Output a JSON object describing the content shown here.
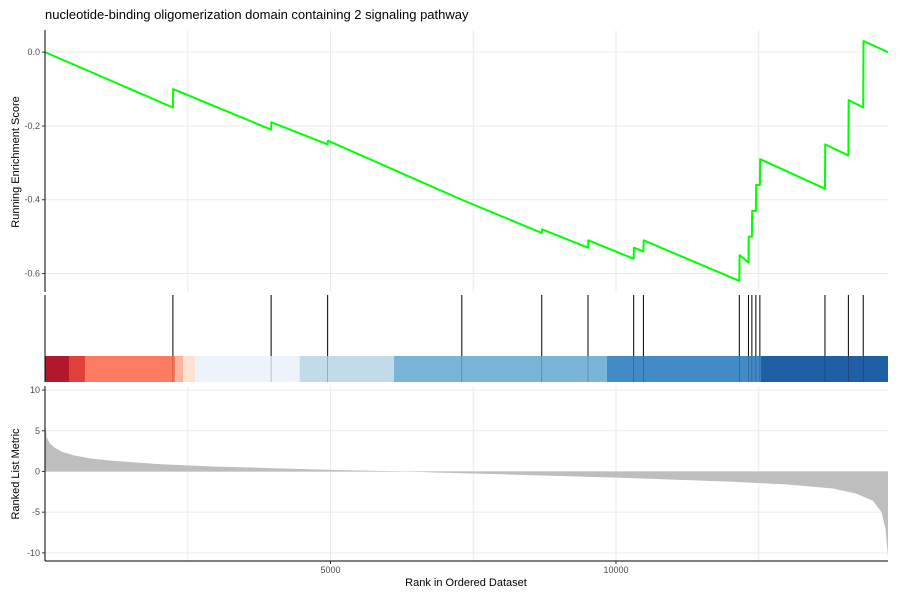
{
  "chart_data": {
    "type": "line",
    "title": "nucleotide-binding oligomerization domain containing 2 signaling pathway",
    "xlabel": "Rank in Ordered Dataset",
    "n_ranks": 14764,
    "xlim": [
      0,
      14764
    ],
    "x_ticks": [
      5000,
      10000
    ],
    "grid_x": [
      2500,
      5000,
      7500,
      10000,
      12500
    ],
    "colors": {
      "enrichment_line": "#00ff00",
      "hit_line": "#000000",
      "ranked_metric_fill": "#bebebe",
      "axis": "#000000",
      "grid": "#ebebeb"
    },
    "enrichment_panel": {
      "ylabel": "Running Enrichment Score",
      "ylim": [
        -0.65,
        0.06
      ],
      "y_ticks": [
        0.0,
        -0.2,
        -0.4,
        -0.6
      ],
      "y_tick_labels": [
        "0.0",
        "-0.2",
        "-0.4",
        "-0.6"
      ],
      "points": [
        [
          0,
          0.0
        ],
        [
          2240,
          -0.15
        ],
        [
          2245,
          -0.1
        ],
        [
          3960,
          -0.21
        ],
        [
          3965,
          -0.19
        ],
        [
          4950,
          -0.25
        ],
        [
          4955,
          -0.24
        ],
        [
          7300,
          -0.4
        ],
        [
          8700,
          -0.49
        ],
        [
          8705,
          -0.48
        ],
        [
          9510,
          -0.53
        ],
        [
          9515,
          -0.51
        ],
        [
          10310,
          -0.56
        ],
        [
          10315,
          -0.53
        ],
        [
          10480,
          -0.54
        ],
        [
          10485,
          -0.51
        ],
        [
          12160,
          -0.62
        ],
        [
          12165,
          -0.55
        ],
        [
          12320,
          -0.57
        ],
        [
          12325,
          -0.5
        ],
        [
          12380,
          -0.5
        ],
        [
          12385,
          -0.43
        ],
        [
          12450,
          -0.43
        ],
        [
          12455,
          -0.36
        ],
        [
          12520,
          -0.36
        ],
        [
          12525,
          -0.29
        ],
        [
          13660,
          -0.37
        ],
        [
          13665,
          -0.25
        ],
        [
          14070,
          -0.28
        ],
        [
          14075,
          -0.13
        ],
        [
          14330,
          -0.15
        ],
        [
          14335,
          0.03
        ],
        [
          14764,
          0.0
        ]
      ]
    },
    "hits_panel": {
      "hits": [
        2240,
        3960,
        4950,
        7300,
        8700,
        9510,
        10310,
        10480,
        12160,
        12320,
        12380,
        12450,
        12520,
        13660,
        14070,
        14330
      ],
      "color_bar": [
        {
          "from": 0,
          "to": 420,
          "color": "#b2182b"
        },
        {
          "from": 420,
          "to": 700,
          "color": "#e0403a"
        },
        {
          "from": 700,
          "to": 2280,
          "color": "#fc7b62"
        },
        {
          "from": 2280,
          "to": 2420,
          "color": "#fcb49b"
        },
        {
          "from": 2420,
          "to": 2630,
          "color": "#fde1d3"
        },
        {
          "from": 2630,
          "to": 4460,
          "color": "#eef3fb"
        },
        {
          "from": 4460,
          "to": 6110,
          "color": "#c3dbe8"
        },
        {
          "from": 6110,
          "to": 9840,
          "color": "#7ab5d9"
        },
        {
          "from": 9840,
          "to": 12540,
          "color": "#428bc6"
        },
        {
          "from": 12540,
          "to": 14764,
          "color": "#1f5fa6"
        }
      ]
    },
    "metric_panel": {
      "ylabel": "Ranked List Metric",
      "ylim": [
        -11,
        10.5
      ],
      "y_ticks": [
        10,
        5,
        0,
        -5,
        -10
      ],
      "y_tick_labels": [
        "10",
        "5",
        "0",
        "-5",
        "-10"
      ],
      "curve": [
        [
          0,
          6.0
        ],
        [
          30,
          4.2
        ],
        [
          80,
          3.5
        ],
        [
          150,
          3.0
        ],
        [
          300,
          2.4
        ],
        [
          500,
          2.0
        ],
        [
          800,
          1.6
        ],
        [
          1200,
          1.3
        ],
        [
          2000,
          0.9
        ],
        [
          3000,
          0.6
        ],
        [
          4000,
          0.4
        ],
        [
          5000,
          0.2
        ],
        [
          6000,
          0.05
        ],
        [
          6300,
          0.0
        ],
        [
          7000,
          -0.15
        ],
        [
          8000,
          -0.35
        ],
        [
          9000,
          -0.55
        ],
        [
          10000,
          -0.75
        ],
        [
          11000,
          -1.0
        ],
        [
          12000,
          -1.25
        ],
        [
          13000,
          -1.6
        ],
        [
          13800,
          -2.1
        ],
        [
          14200,
          -2.7
        ],
        [
          14500,
          -3.6
        ],
        [
          14650,
          -5.0
        ],
        [
          14720,
          -7.0
        ],
        [
          14764,
          -10.5
        ]
      ]
    }
  }
}
